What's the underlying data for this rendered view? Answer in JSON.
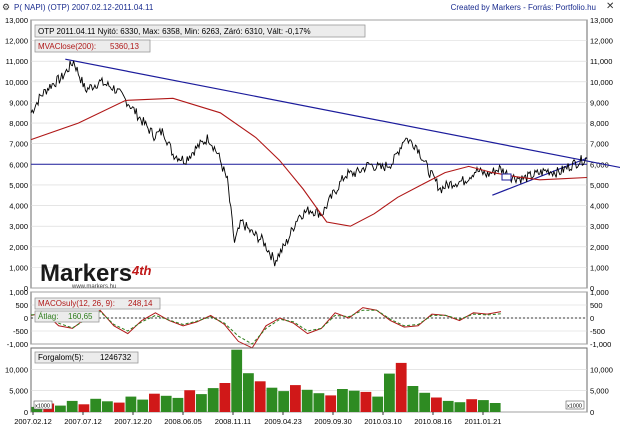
{
  "header": {
    "left": "P( NAPI)  (OTP)  2007.02.12-2011.04.11",
    "right": "Created by Markers - Forrás: Portfolio.hu",
    "gear_icon": "gear-icon",
    "close_icon": "close-icon"
  },
  "watermark": {
    "main": "Markers",
    "accent": "4th",
    "sub": "www.markers.hu"
  },
  "panels": {
    "price": {
      "info": "OTP 2011.04.11 Nyitó: 6330, Max: 6358, Min: 6263, Záró: 6310, Vált: -0,17%",
      "ma_label": "MVAClose(200):",
      "ma_value": "5360,13"
    },
    "macd": {
      "label": "MACOsuly(12, 26, 9):",
      "value": "248,14",
      "signal_label": "Átlag:",
      "signal_value": "160,65"
    },
    "volume": {
      "label": "Forgalom(5):",
      "value": "1246732",
      "scale_marker": "x1000"
    }
  },
  "colors": {
    "price": "#000000",
    "ma": "#b01818",
    "trend": "#1c1c9c",
    "macd": "#b01818",
    "signal": "#2e7d1c",
    "vol_up": "#2e8b22",
    "vol_down": "#d01818",
    "grid": "#d6d6d6"
  },
  "chart_data": [
    {
      "type": "line",
      "title": "OTP 2011.04.11 Nyitó: 6330, Max: 6358, Min: 6263, Záró: 6310, Vált: -0,17%",
      "x_ticks": [
        "2007.02.12",
        "2007.07.12",
        "2007.12.20",
        "2008.06.05",
        "2008.11.11",
        "2009.04.23",
        "2009.09.30",
        "2010.03.10",
        "2010.08.16",
        "2011.01.21"
      ],
      "ylim": [
        0,
        13000
      ],
      "yticks": [
        0,
        1000,
        2000,
        3000,
        4000,
        5000,
        6000,
        7000,
        8000,
        9000,
        10000,
        11000,
        12000,
        13000
      ],
      "series": [
        {
          "name": "OTP",
          "date_index": [
            0,
            8,
            16,
            26,
            36,
            46,
            58,
            70,
            82,
            94,
            104,
            112,
            120,
            130,
            140,
            150,
            158,
            166,
            172,
            178,
            186,
            196,
            206,
            216,
            226,
            236,
            246,
            256,
            266,
            276,
            286,
            296,
            306,
            316,
            326,
            336,
            346,
            356,
            366,
            376,
            386,
            396,
            406,
            416,
            426,
            436,
            446,
            458,
            470
          ],
          "values": [
            8500,
            9300,
            9800,
            10200,
            11000,
            9600,
            10000,
            9700,
            9000,
            8100,
            7400,
            7600,
            6500,
            6200,
            6800,
            7300,
            6500,
            5200,
            2200,
            3200,
            2700,
            2300,
            1300,
            2200,
            3500,
            3800,
            3600,
            4600,
            5500,
            5600,
            6000,
            5800,
            6100,
            7300,
            6900,
            5700,
            4800,
            5100,
            5200,
            5700,
            5500,
            5800,
            5400,
            5300,
            5500,
            5700,
            5600,
            6000,
            6310
          ]
        },
        {
          "name": "MVAClose(200)",
          "date_index": [
            0,
            40,
            80,
            120,
            160,
            190,
            210,
            230,
            250,
            270,
            290,
            310,
            330,
            350,
            370,
            390,
            410,
            430,
            450,
            470
          ],
          "values": [
            7200,
            8000,
            9100,
            9200,
            8500,
            7300,
            6200,
            4800,
            3200,
            3000,
            3600,
            4400,
            5000,
            5600,
            5900,
            5600,
            5400,
            5250,
            5300,
            5360
          ]
        }
      ],
      "horizontal_line": 6000,
      "trendlines": [
        {
          "x": [
            29,
            520
          ],
          "y": [
            11100,
            5600
          ]
        },
        {
          "x": [
            390,
            470
          ],
          "y": [
            4500,
            6300
          ]
        }
      ]
    },
    {
      "type": "line",
      "title": "MACOsuly(12, 26, 9):",
      "x_ticks": [
        "2007.02.12",
        "2007.07.12",
        "2007.12.20",
        "2008.06.05",
        "2008.11.11",
        "2009.04.23",
        "2009.09.30",
        "2010.03.10",
        "2010.08.16",
        "2011.01.21"
      ],
      "ylim": [
        -1000,
        1000
      ],
      "yticks": [
        -1000,
        -500,
        0,
        500,
        1000
      ],
      "series": [
        {
          "name": "MACOsuly(12, 26, 9)",
          "values": [
            100,
            200,
            -300,
            -400,
            0,
            300,
            -300,
            -600,
            -100,
            200,
            -100,
            -300,
            -150,
            100,
            -250,
            -900,
            -1150,
            -300,
            0,
            -200,
            -600,
            -400,
            200,
            0,
            400,
            300,
            -100,
            -350,
            -300,
            150,
            100,
            -100,
            200,
            150,
            248
          ]
        },
        {
          "name": "Átlag",
          "values": [
            120,
            150,
            -200,
            -380,
            -50,
            250,
            -250,
            -500,
            -150,
            100,
            -80,
            -250,
            -120,
            50,
            -200,
            -700,
            -1000,
            -400,
            -50,
            -150,
            -500,
            -400,
            100,
            50,
            300,
            300,
            -50,
            -300,
            -250,
            100,
            100,
            -50,
            150,
            120,
            161
          ]
        }
      ]
    },
    {
      "type": "bar",
      "title": "Forgalom(5):",
      "x_ticks": [
        "2007.02.12",
        "2007.07.12",
        "2007.12.20",
        "2008.06.05",
        "2008.11.11",
        "2009.04.23",
        "2009.09.30",
        "2010.03.10",
        "2010.08.16",
        "2011.01.21"
      ],
      "ylim": [
        0,
        15000
      ],
      "yticks": [
        0,
        5000,
        10000
      ],
      "scale": "x1000",
      "series": [
        {
          "name": "Forgalom(5)",
          "values": [
            1200,
            2000,
            1500,
            2600,
            1800,
            3100,
            2500,
            2200,
            3600,
            2900,
            4300,
            3800,
            3300,
            5100,
            4200,
            5600,
            6800,
            14600,
            9100,
            7200,
            5700,
            4900,
            6300,
            5200,
            4400,
            3900,
            5400,
            5000,
            4700,
            3600,
            9000,
            11500,
            6100,
            4500,
            3400,
            2600,
            2300,
            3000,
            2800,
            2100
          ]
        }
      ]
    }
  ]
}
